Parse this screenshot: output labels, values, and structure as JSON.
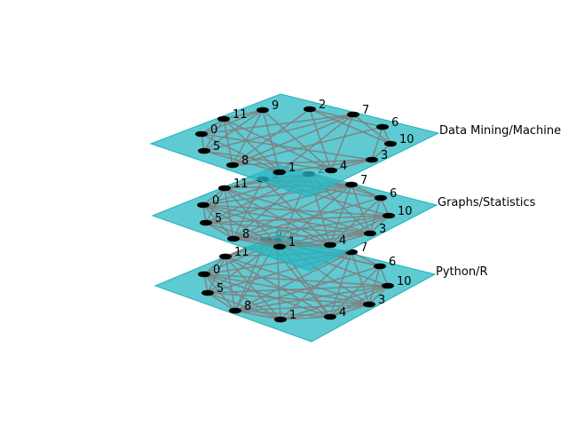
{
  "colors": {
    "plane_fill": "#2ab8c3",
    "plane_stroke": "#1fb0bc",
    "edge": "#808080",
    "node": "#000000",
    "label": "#000000"
  },
  "node_ids": [
    "0",
    "1",
    "2",
    "3",
    "4",
    "5",
    "6",
    "7",
    "8",
    "9",
    "10",
    "11"
  ],
  "layers": [
    {
      "name": "Data Mining/Machine"
    },
    {
      "name": "Graphs/Statistics"
    },
    {
      "name": "Python/R"
    }
  ]
}
